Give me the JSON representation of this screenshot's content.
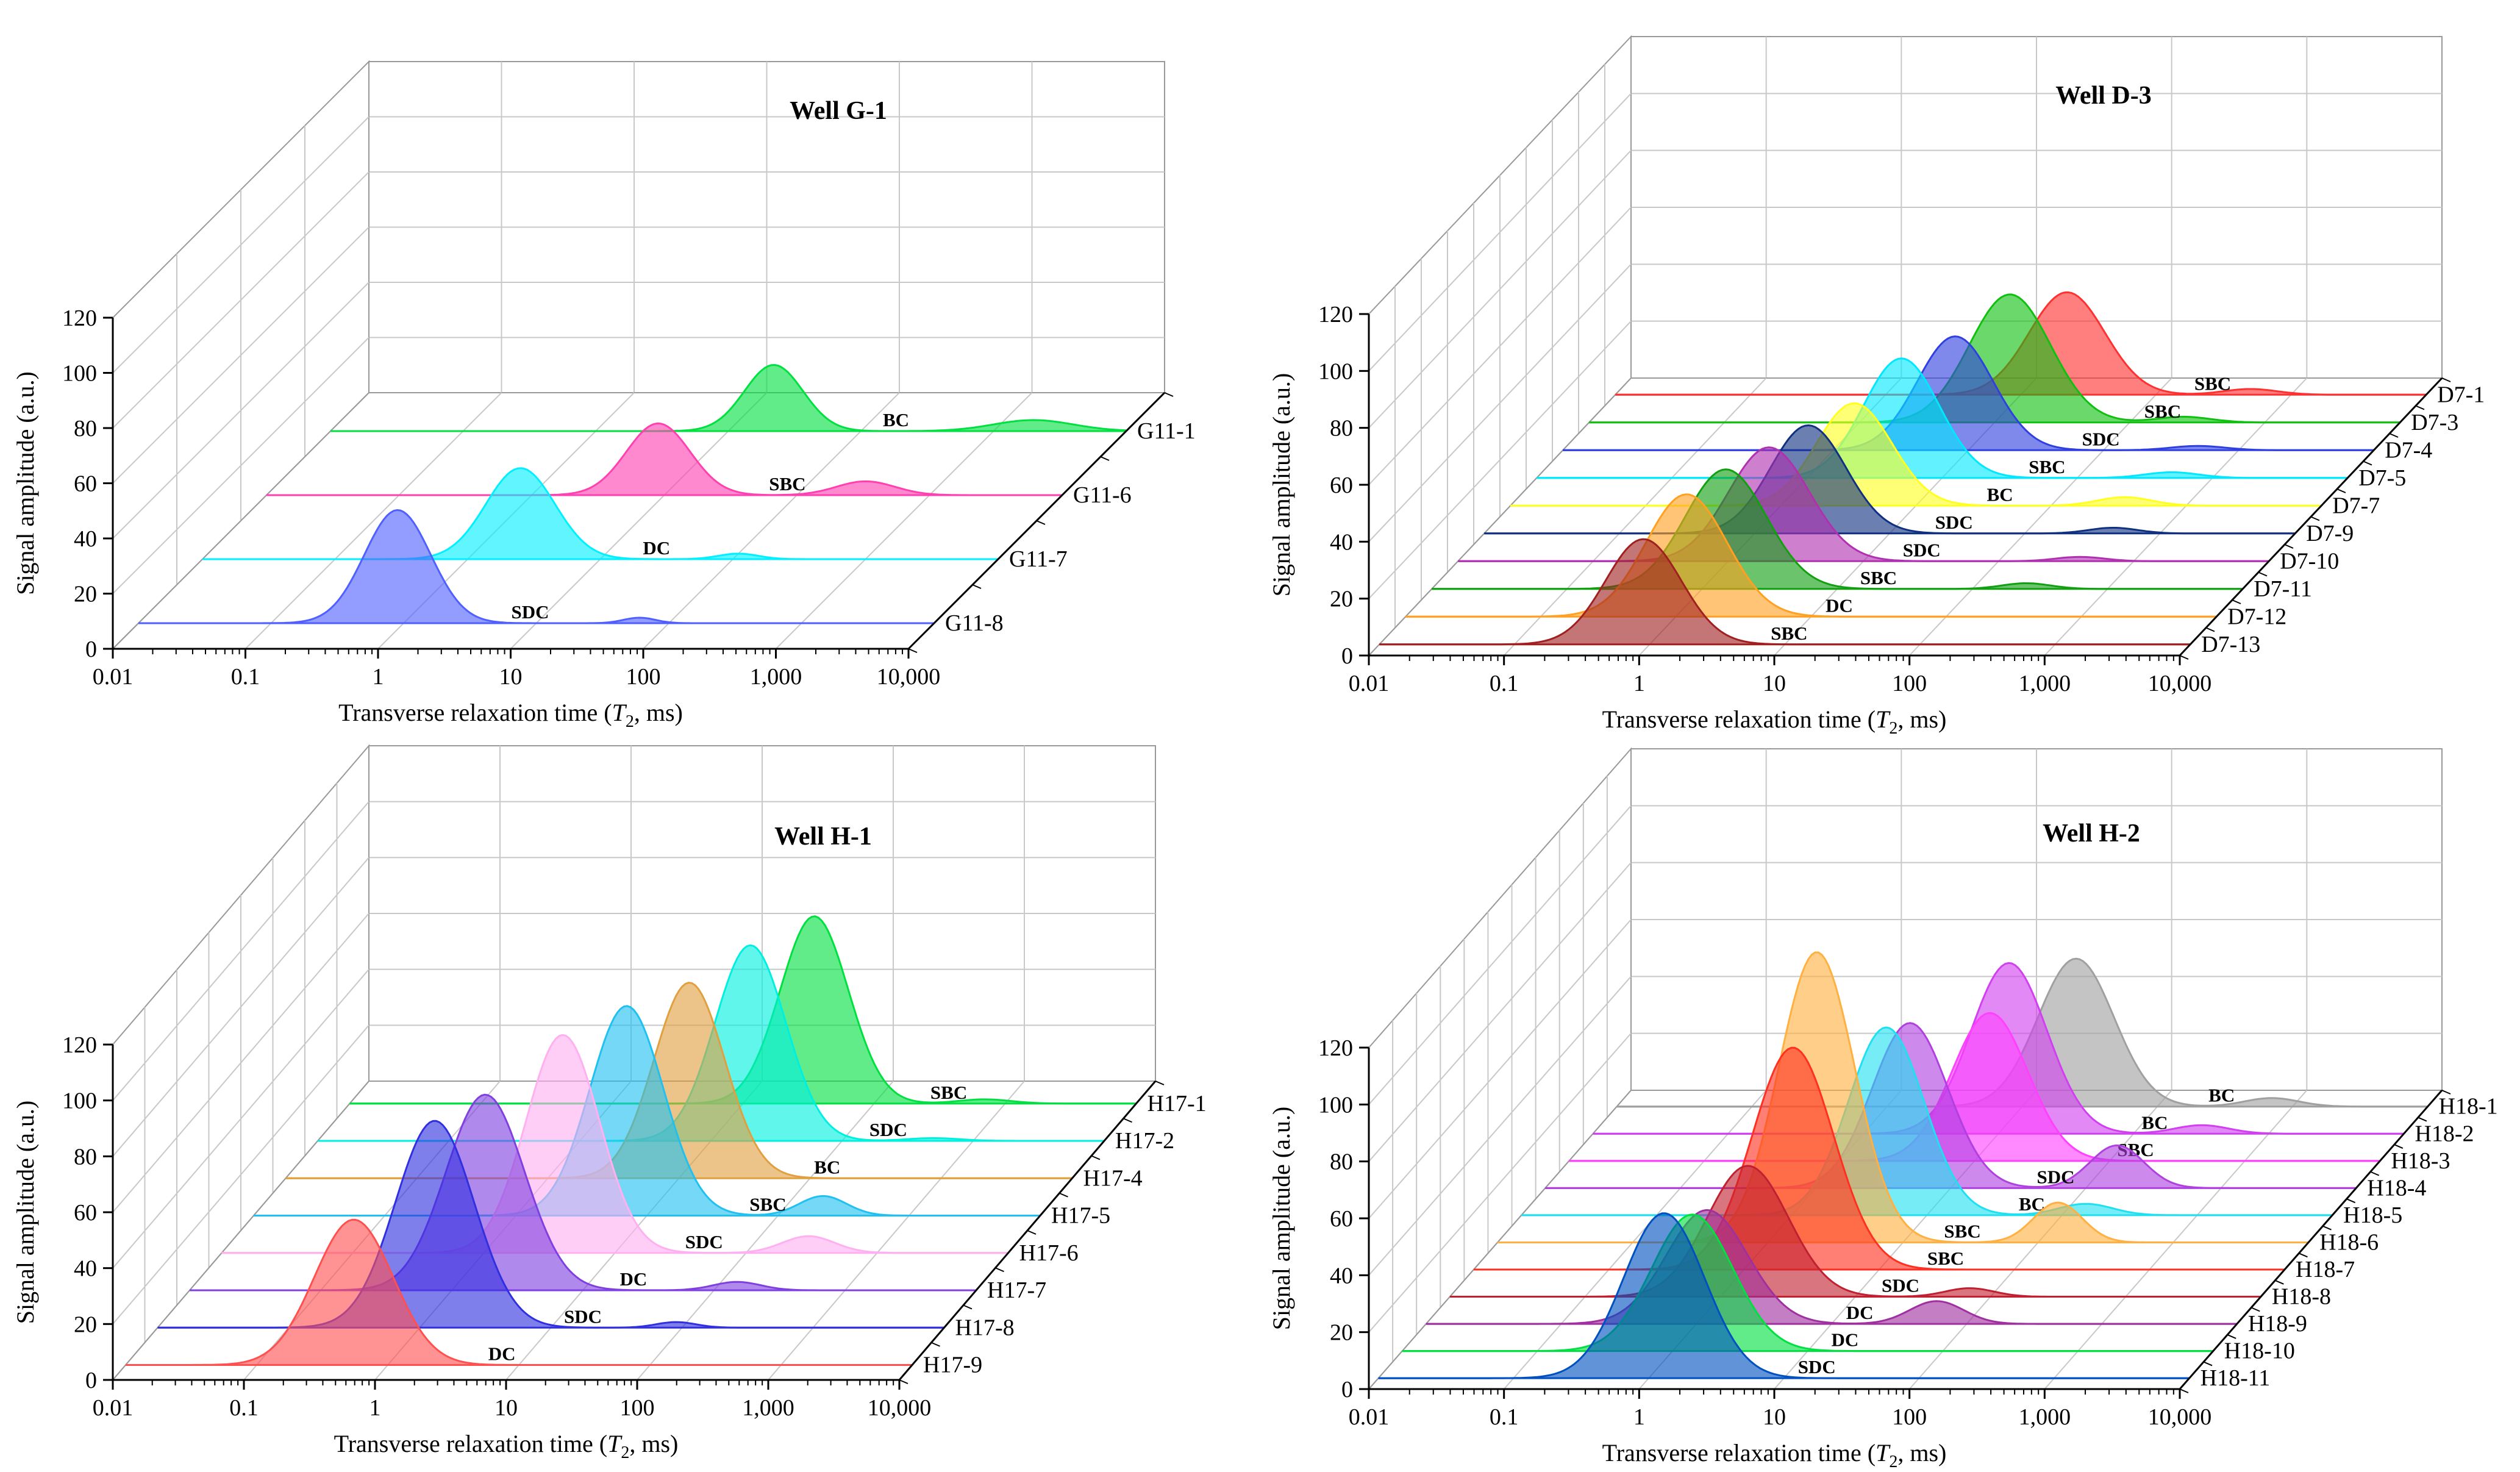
{
  "chart_data": [
    {
      "type": "area",
      "title": "Well G-1",
      "xlabel_pre": "Transverse relaxation time (",
      "xlabel_var": "T",
      "xlabel_sub": "2",
      "xlabel_post": ", ms)",
      "ylabel": "Signal amplitude (a.u.)",
      "x_ticks": [
        "0.01",
        "0.1",
        "1",
        "10",
        "100",
        "1,000",
        "10,000"
      ],
      "y_ticks": [
        "0",
        "20",
        "40",
        "60",
        "80",
        "100",
        "120"
      ],
      "xlim_log10": [
        -2,
        4
      ],
      "ylim": [
        0,
        120
      ],
      "series": [
        {
          "name": "G11-1",
          "label": "BC",
          "color": "#00e040",
          "peaks": [
            [
              22,
              24,
              0.22
            ],
            [
              2000,
              4,
              0.3
            ]
          ]
        },
        {
          "name": "G11-6",
          "label": "SBC",
          "color": "#ff40b0",
          "peaks": [
            [
              9,
              26,
              0.24
            ],
            [
              330,
              5,
              0.22
            ]
          ]
        },
        {
          "name": "G11-7",
          "label": "DC",
          "color": "#00f0ff",
          "peaks": [
            [
              2.5,
              33,
              0.26
            ],
            [
              110,
              2,
              0.15
            ]
          ]
        },
        {
          "name": "G11-8",
          "label": "SDC",
          "color": "#5060ff",
          "peaks": [
            [
              0.9,
              41,
              0.25
            ],
            [
              60,
              2,
              0.12
            ]
          ]
        }
      ]
    },
    {
      "type": "area",
      "title": "Well D-3",
      "xlabel_pre": "Transverse relaxation time (",
      "xlabel_var": "T",
      "xlabel_sub": "2",
      "xlabel_post": ", ms)",
      "ylabel": "Signal amplitude (a.u.)",
      "x_ticks": [
        "0.01",
        "0.1",
        "1",
        "10",
        "100",
        "1,000",
        "10,000"
      ],
      "y_ticks": [
        "0",
        "20",
        "40",
        "60",
        "80",
        "100",
        "120"
      ],
      "xlim_log10": [
        -2,
        4
      ],
      "ylim": [
        0,
        120
      ],
      "series": [
        {
          "name": "D7-1",
          "label": "SBC",
          "color": "#ff3030",
          "peaks": [
            [
              22,
              36,
              0.28
            ],
            [
              500,
              2,
              0.2
            ]
          ]
        },
        {
          "name": "D7-3",
          "label": "SBC",
          "color": "#10c010",
          "peaks": [
            [
              13,
              45,
              0.3
            ],
            [
              250,
              2,
              0.2
            ]
          ]
        },
        {
          "name": "D7-4",
          "label": "SDC",
          "color": "#3040e0",
          "peaks": [
            [
              8,
              40,
              0.28
            ],
            [
              500,
              1.5,
              0.2
            ]
          ]
        },
        {
          "name": "D7-5",
          "label": "SBC",
          "color": "#00e8ff",
          "peaks": [
            [
              5,
              42,
              0.28
            ],
            [
              500,
              2,
              0.2
            ]
          ]
        },
        {
          "name": "D7-7",
          "label": "BC",
          "color": "#ffff20",
          "peaks": [
            [
              3.5,
              36,
              0.28
            ],
            [
              350,
              3,
              0.2
            ]
          ]
        },
        {
          "name": "D7-9",
          "label": "SDC",
          "color": "#103080",
          "peaks": [
            [
              2.5,
              38,
              0.28
            ],
            [
              450,
              2,
              0.18
            ]
          ]
        },
        {
          "name": "D7-10",
          "label": "SDC",
          "color": "#b030b0",
          "peaks": [
            [
              2,
              40,
              0.3
            ],
            [
              400,
              1.5,
              0.18
            ]
          ]
        },
        {
          "name": "D7-11",
          "label": "SBC",
          "color": "#10a010",
          "peaks": [
            [
              1.5,
              42,
              0.3
            ],
            [
              250,
              2,
              0.18
            ]
          ]
        },
        {
          "name": "D7-12",
          "label": "DC",
          "color": "#ffa020",
          "peaks": [
            [
              1.2,
              43,
              0.3
            ]
          ]
        },
        {
          "name": "D7-13",
          "label": "SBC",
          "color": "#a02020",
          "peaks": [
            [
              0.9,
              37,
              0.28
            ]
          ]
        }
      ]
    },
    {
      "type": "area",
      "title": "Well H-1",
      "xlabel_pre": "Transverse relaxation time (",
      "xlabel_var": "T",
      "xlabel_sub": "2",
      "xlabel_post": ", ms)",
      "ylabel": "Signal amplitude (a.u.)",
      "x_ticks": [
        "0.01",
        "0.1",
        "1",
        "10",
        "100",
        "1,000",
        "10,000"
      ],
      "y_ticks": [
        "0",
        "20",
        "40",
        "60",
        "80",
        "100",
        "120"
      ],
      "xlim_log10": [
        -2,
        4
      ],
      "ylim": [
        0,
        120
      ],
      "series": [
        {
          "name": "H17-1",
          "label": "SBC",
          "color": "#00e040",
          "peaks": [
            [
              35,
              67,
              0.26
            ],
            [
              700,
              1.5,
              0.2
            ]
          ]
        },
        {
          "name": "H17-2",
          "label": "SDC",
          "color": "#00f0e0",
          "peaks": [
            [
              20,
              70,
              0.27
            ],
            [
              500,
              1,
              0.2
            ]
          ]
        },
        {
          "name": "H17-4",
          "label": "BC",
          "color": "#e0a040",
          "peaks": [
            [
              12,
              70,
              0.27
            ]
          ]
        },
        {
          "name": "H17-5",
          "label": "SBC",
          "color": "#20c0f0",
          "peaks": [
            [
              7,
              75,
              0.28
            ],
            [
              220,
              7,
              0.18
            ]
          ]
        },
        {
          "name": "H17-6",
          "label": "SDC",
          "color": "#ffb0f0",
          "peaks": [
            [
              4,
              78,
              0.28
            ],
            [
              300,
              6,
              0.2
            ]
          ]
        },
        {
          "name": "H17-7",
          "label": "DC",
          "color": "#8040e0",
          "peaks": [
            [
              1.8,
              70,
              0.3
            ],
            [
              150,
              3,
              0.18
            ]
          ]
        },
        {
          "name": "H17-8",
          "label": "SDC",
          "color": "#3030e0",
          "peaks": [
            [
              1.3,
              74,
              0.3
            ],
            [
              90,
              2,
              0.15
            ]
          ]
        },
        {
          "name": "H17-9",
          "label": "DC",
          "color": "#ff5050",
          "peaks": [
            [
              0.55,
              52,
              0.3
            ]
          ]
        }
      ]
    },
    {
      "type": "area",
      "title": "Well H-2",
      "xlabel_pre": "Transverse relaxation time (",
      "xlabel_var": "T",
      "xlabel_sub": "2",
      "xlabel_post": ", ms)",
      "ylabel": "Signal amplitude (a.u.)",
      "x_ticks": [
        "0.01",
        "0.1",
        "1",
        "10",
        "100",
        "1,000",
        "10,000"
      ],
      "y_ticks": [
        "0",
        "20",
        "40",
        "60",
        "80",
        "100",
        "120"
      ],
      "xlim_log10": [
        -2,
        4
      ],
      "ylim": [
        0,
        120
      ],
      "series": [
        {
          "name": "H18-1",
          "label": "BC",
          "color": "#a0a0a0",
          "peaks": [
            [
              25,
              52,
              0.28
            ],
            [
              700,
              3,
              0.2
            ]
          ]
        },
        {
          "name": "H18-2",
          "label": "BC",
          "color": "#d040f0",
          "peaks": [
            [
              12,
              60,
              0.28
            ],
            [
              320,
              3,
              0.2
            ]
          ]
        },
        {
          "name": "H18-3",
          "label": "SBC",
          "color": "#ff40ff",
          "peaks": [
            [
              13,
              52,
              0.28
            ]
          ]
        },
        {
          "name": "H18-4",
          "label": "SDC",
          "color": "#b040e0",
          "peaks": [
            [
              5,
              58,
              0.28
            ],
            [
              170,
              15,
              0.2
            ]
          ]
        },
        {
          "name": "H18-5",
          "label": "BC",
          "color": "#20e0f0",
          "peaks": [
            [
              5,
              66,
              0.28
            ],
            [
              150,
              4,
              0.2
            ]
          ]
        },
        {
          "name": "H18-6",
          "label": "SBC",
          "color": "#ffb040",
          "peaks": [
            [
              2.3,
              102,
              0.28
            ],
            [
              140,
              14,
              0.18
            ]
          ]
        },
        {
          "name": "H18-7",
          "label": "SBC",
          "color": "#ff3020",
          "peaks": [
            [
              2.3,
              78,
              0.3
            ]
          ]
        },
        {
          "name": "H18-8",
          "label": "SDC",
          "color": "#c02030",
          "peaks": [
            [
              1.6,
              46,
              0.3
            ],
            [
              70,
              3,
              0.18
            ]
          ]
        },
        {
          "name": "H18-9",
          "label": "DC",
          "color": "#a030a0",
          "peaks": [
            [
              1.2,
              40,
              0.3
            ],
            [
              60,
              8,
              0.2
            ]
          ]
        },
        {
          "name": "H18-10",
          "label": "DC",
          "color": "#00e040",
          "peaks": [
            [
              1.4,
              48,
              0.3
            ]
          ]
        },
        {
          "name": "H18-11",
          "label": "SDC",
          "color": "#0050c0",
          "peaks": [
            [
              1.3,
              58,
              0.3
            ]
          ]
        }
      ]
    }
  ]
}
